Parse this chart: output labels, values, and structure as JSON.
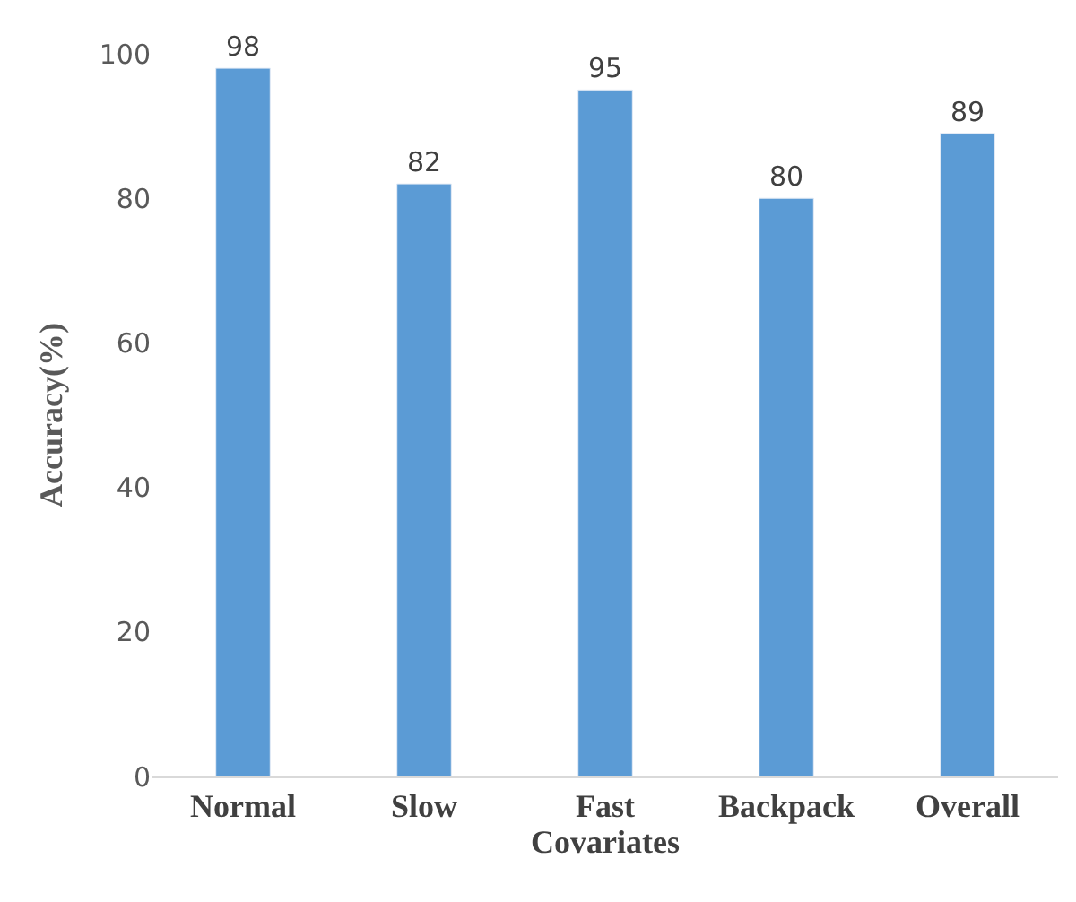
{
  "chart_data": {
    "type": "bar",
    "xlabel": "Covariates",
    "ylabel": "Accuracy(%)",
    "categories": [
      "Normal",
      "Slow",
      "Fast",
      "Backpack",
      "Overall"
    ],
    "values": [
      98,
      82,
      95,
      80,
      89
    ],
    "color": "#5b9bd5",
    "ylim": [
      0,
      100
    ],
    "yticks": [
      0,
      20,
      40,
      60,
      80,
      100
    ],
    "data_labels": true
  }
}
